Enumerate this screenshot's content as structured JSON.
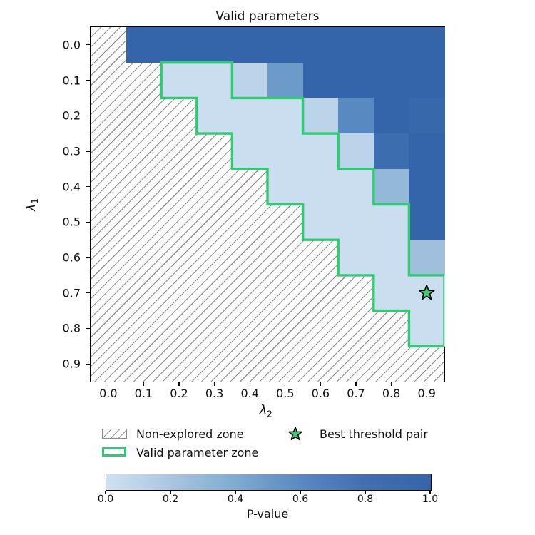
{
  "title": "Valid parameters",
  "axes": {
    "x_label_base": "λ",
    "x_label_sub": "2",
    "y_label_base": "λ",
    "y_label_sub": "1",
    "x_ticks": [
      "0.0",
      "0.1",
      "0.2",
      "0.3",
      "0.4",
      "0.5",
      "0.6",
      "0.7",
      "0.8",
      "0.9"
    ],
    "y_ticks": [
      "0.0",
      "0.1",
      "0.2",
      "0.3",
      "0.4",
      "0.5",
      "0.6",
      "0.7",
      "0.8",
      "0.9"
    ]
  },
  "legend": {
    "non_explored": {
      "label": "Non-explored zone"
    },
    "valid_zone": {
      "label": "Valid parameter zone"
    },
    "best_pair": {
      "label": "Best threshold pair"
    }
  },
  "colorbar": {
    "label": "P-value",
    "ticks": [
      "0.0",
      "0.2",
      "0.4",
      "0.6",
      "0.8",
      "1.0"
    ],
    "range": [
      0,
      1
    ]
  },
  "colors": {
    "valid_outline_green": "#2ecc71",
    "star_fill_green": "#3dc878",
    "hatch_gray": "#8e8e8e",
    "dark_blue_max": "#3465aa",
    "light_blue_min": "#cfe1f2"
  },
  "chart_data": {
    "type": "heatmap",
    "title": "Valid parameters",
    "xlabel": "lambda_2",
    "ylabel": "lambda_1",
    "x_values": [
      0.0,
      0.1,
      0.2,
      0.3,
      0.4,
      0.5,
      0.6,
      0.7,
      0.8,
      0.9
    ],
    "y_values": [
      0.0,
      0.1,
      0.2,
      0.3,
      0.4,
      0.5,
      0.6,
      0.7,
      0.8,
      0.9
    ],
    "value_name": "P-value",
    "null_means": "non-explored zone (gray hatched)",
    "p_values": [
      [
        null,
        1.0,
        1.0,
        1.0,
        1.0,
        1.0,
        1.0,
        1.0,
        1.0,
        1.0
      ],
      [
        null,
        null,
        0.02,
        0.02,
        0.1,
        0.5,
        1.0,
        1.0,
        1.0,
        1.0
      ],
      [
        null,
        null,
        null,
        0.02,
        0.02,
        0.02,
        0.1,
        0.6,
        1.0,
        0.95
      ],
      [
        null,
        null,
        null,
        null,
        0.02,
        0.02,
        0.02,
        0.1,
        0.85,
        1.0
      ],
      [
        null,
        null,
        null,
        null,
        null,
        0.02,
        0.02,
        0.02,
        0.3,
        1.0
      ],
      [
        null,
        null,
        null,
        null,
        null,
        null,
        0.02,
        0.02,
        0.02,
        1.0
      ],
      [
        null,
        null,
        null,
        null,
        null,
        null,
        null,
        0.02,
        0.02,
        0.25
      ],
      [
        null,
        null,
        null,
        null,
        null,
        null,
        null,
        null,
        0.02,
        0.02
      ],
      [
        null,
        null,
        null,
        null,
        null,
        null,
        null,
        null,
        null,
        0.02
      ],
      [
        null,
        null,
        null,
        null,
        null,
        null,
        null,
        null,
        null,
        null
      ]
    ],
    "valid_zone_cells_by_row": {
      "0.1": [
        0.2,
        0.3
      ],
      "0.2": [
        0.3,
        0.4,
        0.5
      ],
      "0.3": [
        0.4,
        0.5,
        0.6
      ],
      "0.4": [
        0.5,
        0.6,
        0.7
      ],
      "0.5": [
        0.6,
        0.7,
        0.8
      ],
      "0.6": [
        0.7,
        0.8
      ],
      "0.7": [
        0.8,
        0.9
      ],
      "0.8": [
        0.9
      ]
    },
    "valid_zone_polygon_grid": [
      [
        2,
        1
      ],
      [
        4,
        1
      ],
      [
        4,
        2
      ],
      [
        6,
        2
      ],
      [
        6,
        3
      ],
      [
        7,
        3
      ],
      [
        7,
        4
      ],
      [
        8,
        4
      ],
      [
        8,
        5
      ],
      [
        9,
        5
      ],
      [
        9,
        7
      ],
      [
        10,
        7
      ],
      [
        10,
        9
      ],
      [
        9,
        9
      ],
      [
        9,
        8
      ],
      [
        8,
        8
      ],
      [
        8,
        7
      ],
      [
        7,
        7
      ],
      [
        7,
        6
      ],
      [
        6,
        6
      ],
      [
        6,
        5
      ],
      [
        5,
        5
      ],
      [
        5,
        4
      ],
      [
        4,
        4
      ],
      [
        4,
        3
      ],
      [
        3,
        3
      ],
      [
        3,
        2
      ],
      [
        2,
        2
      ]
    ],
    "best_threshold_pair": {
      "lambda_2": 0.9,
      "lambda_1": 0.7
    },
    "colormap_stops": [
      [
        0.0,
        "#cfe1f2"
      ],
      [
        0.2,
        "#a9c6e0"
      ],
      [
        0.4,
        "#7fabd0"
      ],
      [
        0.6,
        "#5889c1"
      ],
      [
        0.8,
        "#3f6fb0"
      ],
      [
        1.0,
        "#3465aa"
      ]
    ],
    "legend_position": "below plot, two columns, no frame",
    "colorbar_orientation": "horizontal"
  }
}
